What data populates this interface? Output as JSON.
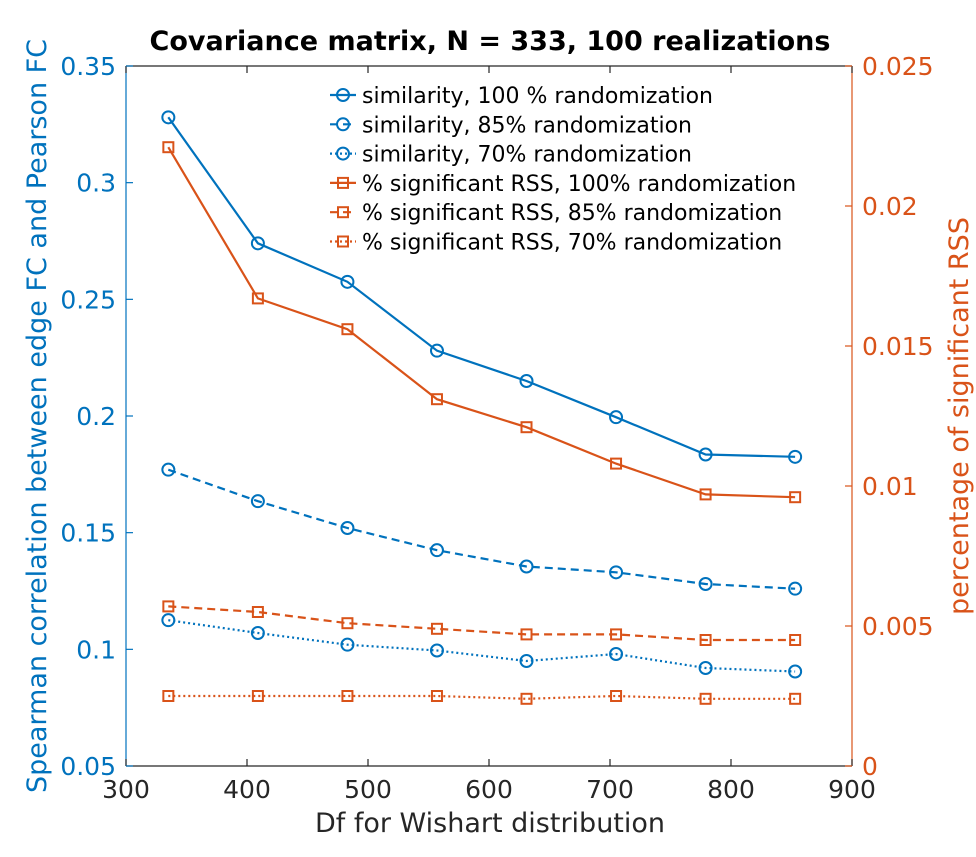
{
  "chart_data": {
    "type": "line",
    "title": "Covariance matrix, N = 333, 100 realizations",
    "xlabel": "Df for Wishart distribution",
    "ylabel_left": "Spearman correlation between edge FC and Pearson FC",
    "ylabel_right": "percentage of significant RSS",
    "xlim": [
      300,
      900
    ],
    "ylim_left": [
      0.05,
      0.35
    ],
    "ylim_right": [
      0,
      0.025
    ],
    "x_ticks": [
      "300",
      "400",
      "500",
      "600",
      "700",
      "800",
      "900"
    ],
    "y_left_ticks": [
      "0.05",
      "0.1",
      "0.15",
      "0.2",
      "0.25",
      "0.3",
      "0.35"
    ],
    "y_right_ticks": [
      "0",
      "0.005",
      "0.01",
      "0.015",
      "0.02",
      "0.025"
    ],
    "grid": false,
    "legend_position": "top-right",
    "colors": {
      "left": "#0072BD",
      "right": "#D95319",
      "axis": "#262626"
    },
    "x": [
      335,
      409,
      483,
      557,
      631,
      705,
      779,
      853
    ],
    "series": [
      {
        "name": "similarity, 100 % randomization",
        "axis": "left",
        "dash": "solid",
        "marker": "circle",
        "values": [
          0.328,
          0.274,
          0.2575,
          0.228,
          0.215,
          0.1995,
          0.1835,
          0.1825
        ]
      },
      {
        "name": "similarity, 85% randomization",
        "axis": "left",
        "dash": "dashed",
        "marker": "circle",
        "values": [
          0.177,
          0.1635,
          0.152,
          0.1425,
          0.1355,
          0.133,
          0.128,
          0.126
        ]
      },
      {
        "name": "similarity, 70% randomization",
        "axis": "left",
        "dash": "dotted",
        "marker": "circle",
        "values": [
          0.1125,
          0.107,
          0.102,
          0.0995,
          0.095,
          0.098,
          0.092,
          0.0905
        ]
      },
      {
        "name": "% significant RSS, 100% randomization",
        "axis": "right",
        "dash": "solid",
        "marker": "square",
        "values": [
          0.0221,
          0.0167,
          0.0156,
          0.0131,
          0.0121,
          0.0108,
          0.0097,
          0.0096
        ]
      },
      {
        "name": "% significant RSS, 85% randomization",
        "axis": "right",
        "dash": "dashed",
        "marker": "square",
        "values": [
          0.0057,
          0.0055,
          0.0051,
          0.0049,
          0.0047,
          0.0047,
          0.0045,
          0.0045
        ]
      },
      {
        "name": "% significant RSS, 70% randomization",
        "axis": "right",
        "dash": "dotted",
        "marker": "square",
        "values": [
          0.0025,
          0.0025,
          0.0025,
          0.0025,
          0.0024,
          0.0025,
          0.0024,
          0.0024
        ]
      }
    ]
  }
}
